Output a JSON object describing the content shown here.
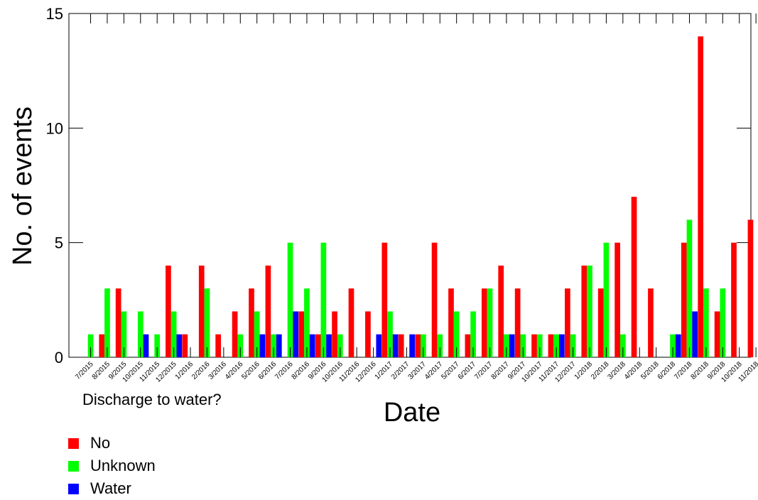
{
  "chart_data": {
    "type": "bar",
    "ylabel": "No. of events",
    "xlabel": "Date",
    "ylim": [
      0,
      15
    ],
    "yticks": [
      0,
      5,
      10,
      15
    ],
    "categories": [
      "7/2015",
      "8/2015",
      "9/2015",
      "10/2015",
      "11/2015",
      "12/2015",
      "1/2016",
      "2/2016",
      "3/2016",
      "4/2016",
      "5/2016",
      "6/2016",
      "7/2016",
      "8/2016",
      "9/2016",
      "10/2016",
      "11/2016",
      "12/2016",
      "1/2017",
      "2/2017",
      "3/2017",
      "4/2017",
      "5/2017",
      "6/2017",
      "7/2017",
      "8/2017",
      "9/2017",
      "10/2017",
      "11/2017",
      "12/2017",
      "1/2018",
      "2/2018",
      "3/2018",
      "4/2018",
      "5/2018",
      "6/2018",
      "7/2018",
      "8/2018",
      "9/2018",
      "10/2018",
      "11/2018"
    ],
    "series": [
      {
        "name": "No",
        "color": "#ff0000",
        "values": [
          0,
          1,
          3,
          0,
          0,
          4,
          1,
          4,
          1,
          2,
          3,
          4,
          0,
          2,
          1,
          2,
          3,
          2,
          5,
          1,
          1,
          5,
          3,
          1,
          3,
          4,
          3,
          1,
          1,
          3,
          4,
          3,
          5,
          7,
          3,
          0,
          5,
          14,
          2,
          5,
          6
        ]
      },
      {
        "name": "Unknown",
        "color": "#00ff00",
        "values": [
          1,
          3,
          2,
          2,
          1,
          2,
          0,
          3,
          0,
          1,
          2,
          1,
          5,
          3,
          5,
          1,
          0,
          0,
          2,
          0,
          1,
          1,
          2,
          2,
          3,
          1,
          1,
          1,
          1,
          1,
          4,
          5,
          1,
          0,
          0,
          1,
          6,
          3,
          3,
          0,
          0
        ]
      },
      {
        "name": "Water",
        "color": "#0000ff",
        "values": [
          0,
          0,
          0,
          1,
          0,
          1,
          0,
          0,
          0,
          0,
          1,
          1,
          2,
          1,
          1,
          0,
          0,
          1,
          1,
          1,
          0,
          0,
          0,
          0,
          0,
          1,
          0,
          0,
          1,
          0,
          0,
          0,
          0,
          0,
          0,
          1,
          2,
          0,
          0,
          0,
          0
        ]
      }
    ],
    "legend": {
      "title": "Discharge to water?",
      "position": "bottom-left"
    },
    "grid": false
  }
}
